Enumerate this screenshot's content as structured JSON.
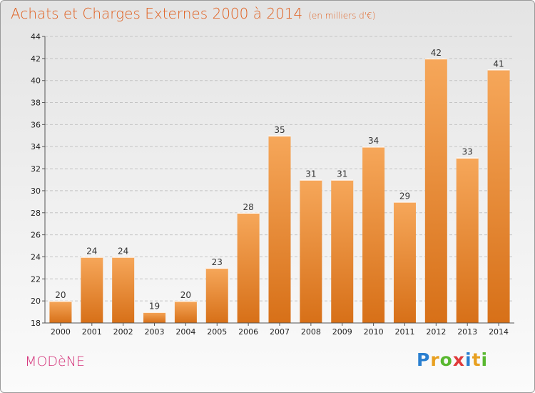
{
  "header": {
    "title": "Achats et Charges Externes 2000 à 2014",
    "subtitle": "(en milliers d'€)"
  },
  "commune": "MODèNE",
  "logo": {
    "letters": [
      "P",
      "r",
      "o",
      "x",
      "i",
      "t",
      "i"
    ],
    "colors": [
      "#2a7fd0",
      "#e8a020",
      "#59b830",
      "#e03a3a",
      "#2a7fd0",
      "#e8a020",
      "#59b830"
    ]
  },
  "colors": {
    "bar_light": "#f6a75a",
    "bar_dark": "#d77018",
    "title": "#e06020",
    "commune": "#d43078"
  },
  "chart_data": {
    "type": "bar",
    "title": "Achats et Charges Externes 2000 à 2014",
    "subtitle": "(en milliers d'€)",
    "categories": [
      "2000",
      "2001",
      "2002",
      "2003",
      "2004",
      "2005",
      "2006",
      "2007",
      "2008",
      "2009",
      "2010",
      "2011",
      "2012",
      "2013",
      "2014"
    ],
    "values": [
      20,
      24,
      24,
      19,
      20,
      23,
      28,
      35,
      31,
      31,
      34,
      29,
      42,
      33,
      41
    ],
    "xlabel": "",
    "ylabel": "",
    "ylim": [
      18,
      44
    ],
    "yticks": [
      18,
      20,
      22,
      24,
      26,
      28,
      30,
      32,
      34,
      36,
      38,
      40,
      42,
      44
    ],
    "grid": true,
    "legend": "none"
  }
}
